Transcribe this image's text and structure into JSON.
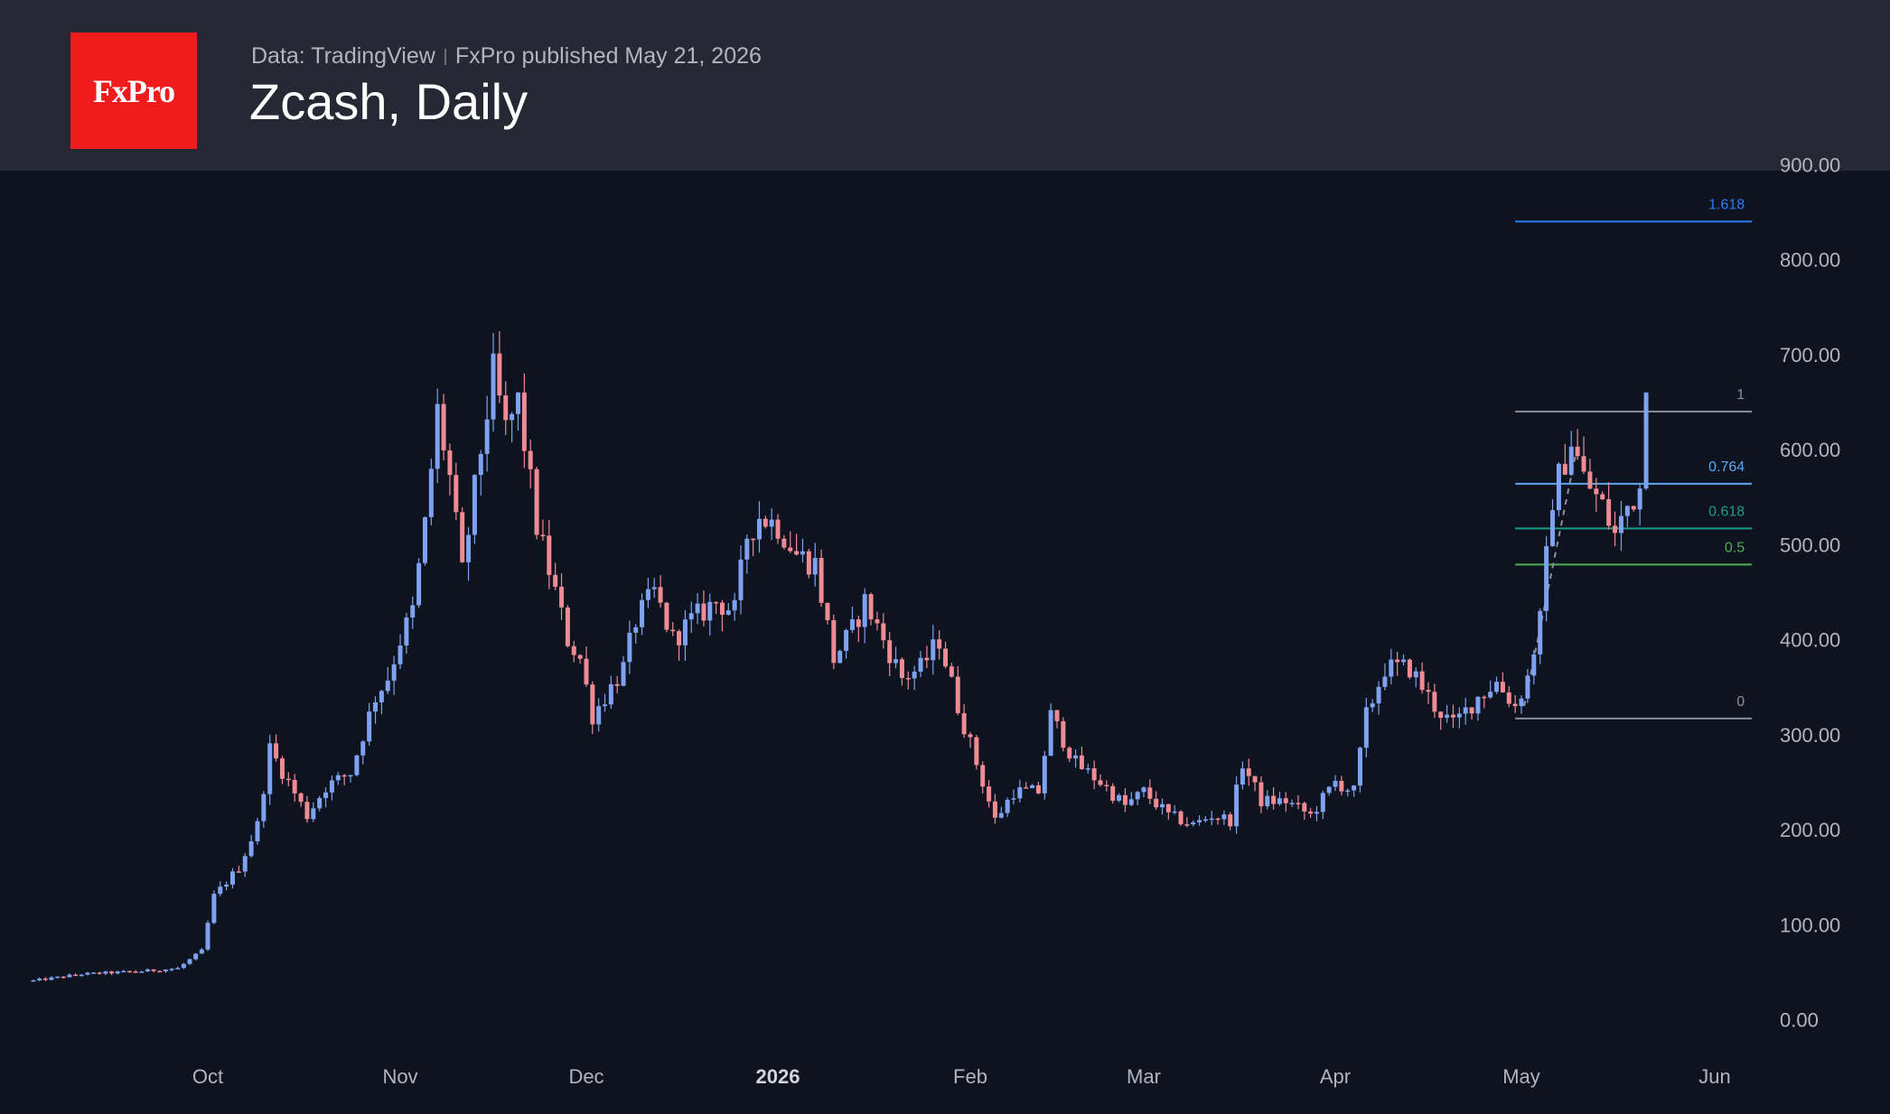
{
  "header": {
    "logo_text": "FxPro",
    "source": "Data: TradingView",
    "published": "FxPro published May 21, 2026",
    "title": "Zcash, Daily"
  },
  "colors": {
    "background": "#0e1320",
    "header_bg": "#262933",
    "logo_bg": "#ee1c1c",
    "up_candle": "#7ea1f0",
    "down_candle": "#f08a93",
    "axis_text": "#b2b5be"
  },
  "chart_data": {
    "type": "candlestick",
    "title": "Zcash, Daily",
    "ylim": [
      0,
      900
    ],
    "y_ticks": [
      "0.00",
      "100.00",
      "200.00",
      "300.00",
      "400.00",
      "500.00",
      "600.00",
      "700.00",
      "800.00",
      "900.00"
    ],
    "x_ticks": [
      {
        "label": "Oct",
        "date": "2025-10-01",
        "bold": false
      },
      {
        "label": "Nov",
        "date": "2025-11-01",
        "bold": false
      },
      {
        "label": "Dec",
        "date": "2025-12-01",
        "bold": false
      },
      {
        "label": "2026",
        "date": "2026-01-01",
        "bold": true
      },
      {
        "label": "Feb",
        "date": "2026-02-01",
        "bold": false
      },
      {
        "label": "Mar",
        "date": "2026-03-01",
        "bold": false
      },
      {
        "label": "Apr",
        "date": "2026-04-01",
        "bold": false
      },
      {
        "label": "May",
        "date": "2026-05-01",
        "bold": false
      },
      {
        "label": "Jun",
        "date": "2026-06-01",
        "bold": false
      }
    ],
    "x_range": [
      "2025-09-02",
      "2026-06-08"
    ],
    "price_path": [
      [
        "2025-09-02",
        41
      ],
      [
        "2025-09-10",
        48
      ],
      [
        "2025-09-20",
        51
      ],
      [
        "2025-09-26",
        54
      ],
      [
        "2025-09-30",
        72
      ],
      [
        "2025-10-02",
        130
      ],
      [
        "2025-10-06",
        160
      ],
      [
        "2025-10-09",
        205
      ],
      [
        "2025-10-11",
        285
      ],
      [
        "2025-10-14",
        250
      ],
      [
        "2025-10-17",
        215
      ],
      [
        "2025-10-20",
        245
      ],
      [
        "2025-10-24",
        260
      ],
      [
        "2025-10-28",
        340
      ],
      [
        "2025-10-30",
        360
      ],
      [
        "2025-11-01",
        400
      ],
      [
        "2025-11-03",
        430
      ],
      [
        "2025-11-05",
        520
      ],
      [
        "2025-11-07",
        640
      ],
      [
        "2025-11-09",
        570
      ],
      [
        "2025-11-11",
        470
      ],
      [
        "2025-11-14",
        600
      ],
      [
        "2025-11-16",
        680
      ],
      [
        "2025-11-18",
        620
      ],
      [
        "2025-11-20",
        650
      ],
      [
        "2025-11-23",
        520
      ],
      [
        "2025-11-26",
        450
      ],
      [
        "2025-11-28",
        400
      ],
      [
        "2025-11-30",
        380
      ],
      [
        "2025-12-02",
        320
      ],
      [
        "2025-12-04",
        340
      ],
      [
        "2025-12-07",
        370
      ],
      [
        "2025-12-09",
        420
      ],
      [
        "2025-12-12",
        450
      ],
      [
        "2025-12-15",
        400
      ],
      [
        "2025-12-18",
        420
      ],
      [
        "2025-12-22",
        440
      ],
      [
        "2025-12-25",
        430
      ],
      [
        "2025-12-27",
        510
      ],
      [
        "2025-12-29",
        530
      ],
      [
        "2026-01-01",
        520
      ],
      [
        "2026-01-04",
        490
      ],
      [
        "2026-01-07",
        480
      ],
      [
        "2026-01-10",
        380
      ],
      [
        "2026-01-13",
        410
      ],
      [
        "2026-01-15",
        440
      ],
      [
        "2026-01-18",
        400
      ],
      [
        "2026-01-21",
        360
      ],
      [
        "2026-01-24",
        370
      ],
      [
        "2026-01-27",
        400
      ],
      [
        "2026-01-30",
        330
      ],
      [
        "2026-02-02",
        270
      ],
      [
        "2026-02-05",
        210
      ],
      [
        "2026-02-08",
        240
      ],
      [
        "2026-02-12",
        240
      ],
      [
        "2026-02-14",
        320
      ],
      [
        "2026-02-18",
        270
      ],
      [
        "2026-02-22",
        250
      ],
      [
        "2026-02-26",
        225
      ],
      [
        "2026-03-01",
        240
      ],
      [
        "2026-03-05",
        215
      ],
      [
        "2026-03-09",
        205
      ],
      [
        "2026-03-12",
        215
      ],
      [
        "2026-03-15",
        210
      ],
      [
        "2026-03-17",
        270
      ],
      [
        "2026-03-20",
        230
      ],
      [
        "2026-03-24",
        230
      ],
      [
        "2026-03-28",
        215
      ],
      [
        "2026-04-01",
        250
      ],
      [
        "2026-04-04",
        240
      ],
      [
        "2026-04-06",
        320
      ],
      [
        "2026-04-09",
        370
      ],
      [
        "2026-04-13",
        370
      ],
      [
        "2026-04-17",
        330
      ],
      [
        "2026-04-20",
        310
      ],
      [
        "2026-04-24",
        340
      ],
      [
        "2026-04-27",
        355
      ],
      [
        "2026-04-30",
        330
      ],
      [
        "2026-05-02",
        360
      ],
      [
        "2026-05-04",
        420
      ],
      [
        "2026-05-06",
        550
      ],
      [
        "2026-05-09",
        610
      ],
      [
        "2026-05-11",
        570
      ],
      [
        "2026-05-14",
        540
      ],
      [
        "2026-05-16",
        510
      ],
      [
        "2026-05-18",
        540
      ],
      [
        "2026-05-20",
        560
      ],
      [
        "2026-05-21",
        670
      ]
    ],
    "fibonacci": {
      "start_date": "2026-04-30",
      "end_date": "2026-06-07",
      "levels": [
        {
          "label": "1.618",
          "value": 840,
          "color": "#2d7cf6"
        },
        {
          "label": "1",
          "value": 640,
          "color": "#8b8f99"
        },
        {
          "label": "0.764",
          "value": 564,
          "color": "#5aa9f0"
        },
        {
          "label": "0.618",
          "value": 517,
          "color": "#1e9b8a"
        },
        {
          "label": "0.5",
          "value": 479,
          "color": "#4caf50"
        },
        {
          "label": "0",
          "value": 317,
          "color": "#8b8f99"
        }
      ]
    }
  }
}
